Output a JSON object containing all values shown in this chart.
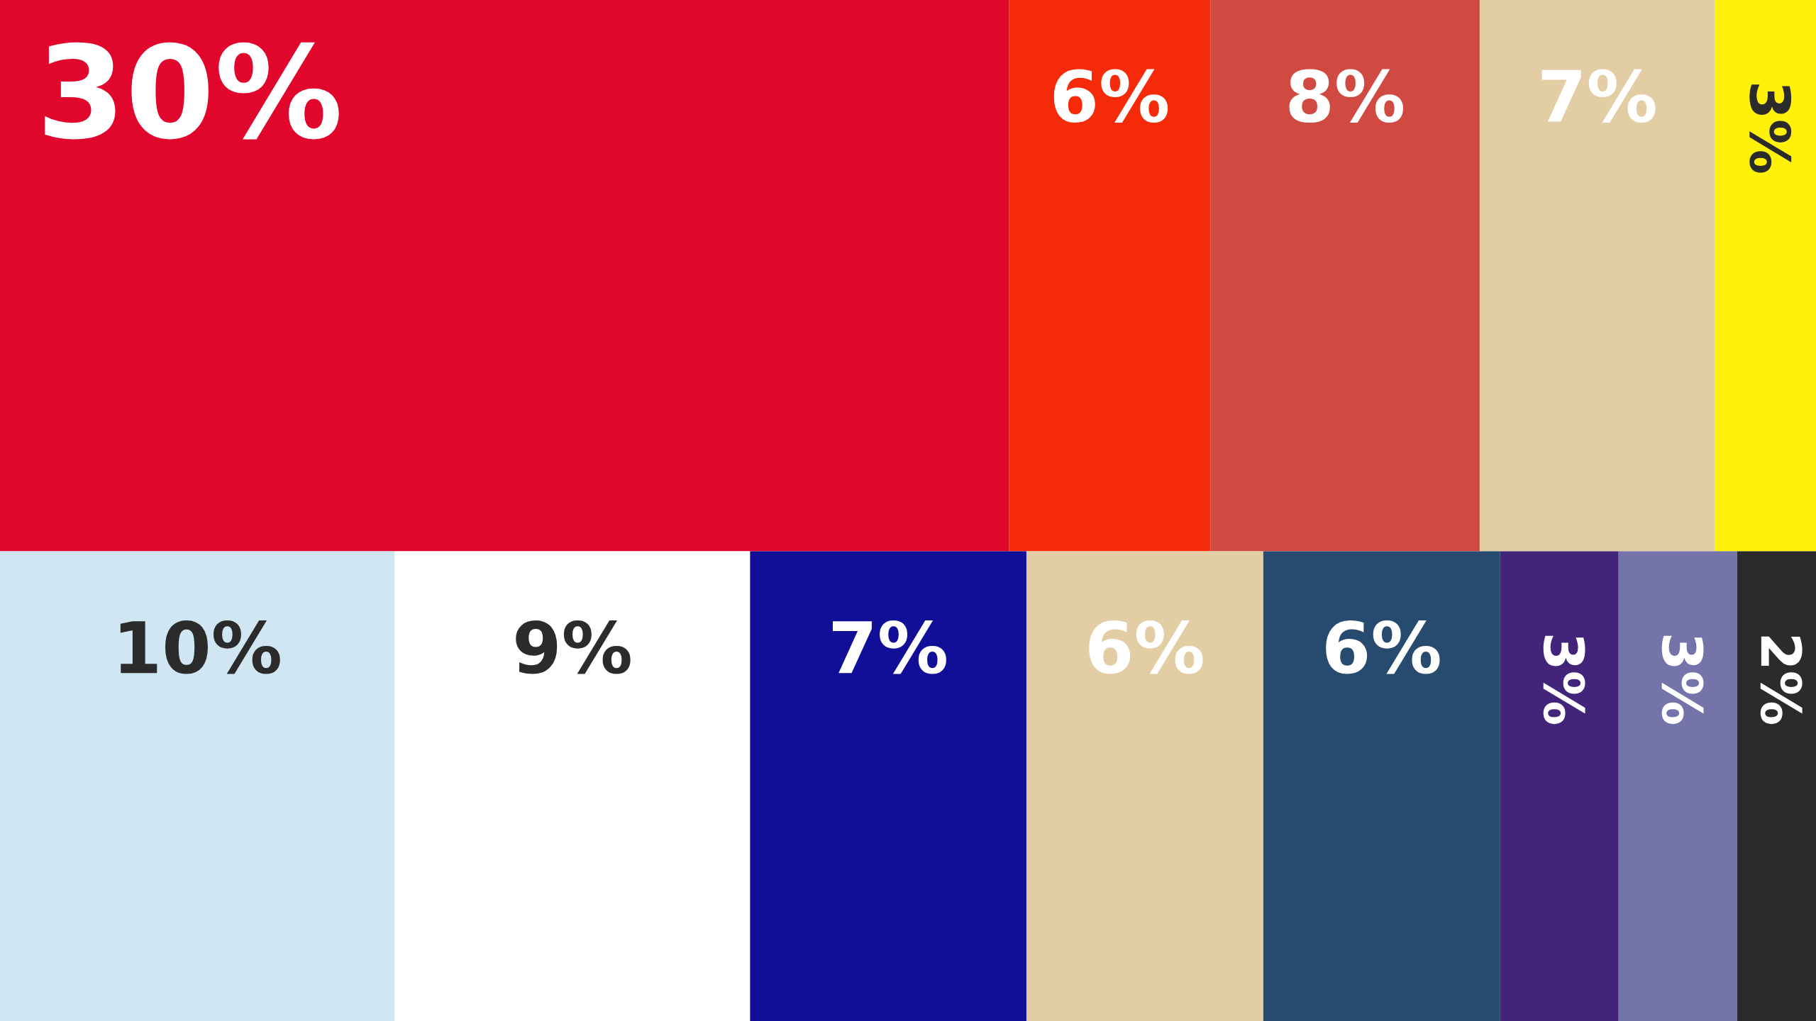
{
  "chart_data": {
    "type": "other",
    "categories": [
      null,
      null,
      null,
      null,
      null,
      null,
      null,
      null,
      null,
      null,
      null,
      null,
      null
    ],
    "values": [
      30,
      6,
      8,
      7,
      3,
      10,
      9,
      7,
      6,
      6,
      3,
      3,
      2
    ],
    "colors": [
      "#e0062c",
      "#f52a08",
      "#d04a42",
      "#e3cda4",
      "#fff10a",
      "#d0e6f2",
      "#ffffff",
      "#110e98",
      "#e3cda4",
      "#274b6e",
      "#42257a",
      "#7574aa",
      "#2b2b2b"
    ],
    "value_labels": [
      "30%",
      "6%",
      "8%",
      "7%",
      "3%",
      "10%",
      "9%",
      "7%",
      "6%",
      "6%",
      "3%",
      "3%",
      "2%"
    ]
  }
}
